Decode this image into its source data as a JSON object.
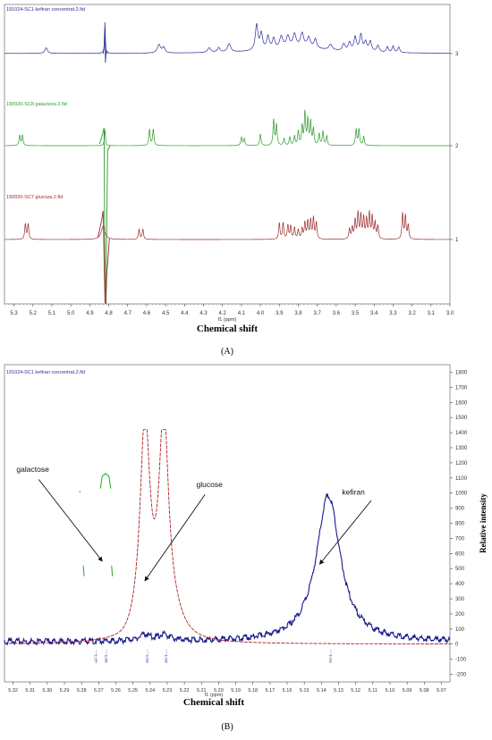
{
  "chart_data": [
    {
      "type": "line",
      "panel_label": "(A)",
      "xlabel": "Chemical shift",
      "x_unit_label": "f1 (ppm)",
      "xlim": [
        5.35,
        3.0
      ],
      "x_reversed": true,
      "x_ticks": [
        "5.3",
        "5.2",
        "5.1",
        "5.0",
        "4.9",
        "4.8",
        "4.7",
        "4.6",
        "4.5",
        "4.4",
        "4.3",
        "4.2",
        "4.1",
        "4.0",
        "3.9",
        "3.8",
        "3.7",
        "3.6",
        "3.5",
        "3.4",
        "3.3",
        "3.2",
        "3.1",
        "3.0"
      ],
      "offset_ticks": [
        "3",
        "2",
        "1"
      ],
      "colors": {
        "kefiran": "#2c2c99",
        "galactose": "#2a9a2a",
        "glucose": "#992a2a"
      },
      "series": [
        {
          "name": "191024-SC1 kefiran concentrat.2.fid",
          "key": "kefiran",
          "offset": 3,
          "peaks": [
            [
              5.13,
              0.12,
              0.008
            ],
            [
              4.82,
              0.55,
              0.003
            ],
            [
              4.535,
              0.18,
              0.01
            ],
            [
              4.51,
              0.12,
              0.008
            ],
            [
              4.27,
              0.1,
              0.01
            ],
            [
              4.22,
              0.1,
              0.008
            ],
            [
              4.165,
              0.18,
              0.01
            ],
            [
              4.02,
              0.55,
              0.008
            ],
            [
              3.995,
              0.35,
              0.008
            ],
            [
              3.96,
              0.28,
              0.008
            ],
            [
              3.93,
              0.22,
              0.008
            ],
            [
              3.89,
              0.25,
              0.01
            ],
            [
              3.855,
              0.24,
              0.01
            ],
            [
              3.82,
              0.28,
              0.01
            ],
            [
              3.78,
              0.3,
              0.01
            ],
            [
              3.745,
              0.22,
              0.01
            ],
            [
              3.71,
              0.2,
              0.008
            ],
            [
              3.63,
              0.12,
              0.01
            ],
            [
              3.56,
              0.15,
              0.008
            ],
            [
              3.53,
              0.18,
              0.008
            ],
            [
              3.5,
              0.3,
              0.008
            ],
            [
              3.47,
              0.35,
              0.008
            ],
            [
              3.445,
              0.2,
              0.008
            ],
            [
              3.42,
              0.22,
              0.008
            ],
            [
              3.38,
              0.14,
              0.008
            ],
            [
              3.33,
              0.12,
              0.006
            ],
            [
              3.3,
              0.14,
              0.006
            ],
            [
              3.27,
              0.12,
              0.006
            ]
          ]
        },
        {
          "name": "190920-SC8 galactoza.2.fid",
          "key": "galactose",
          "offset": 2,
          "peaks": [
            [
              5.27,
              0.22,
              0.004
            ],
            [
              5.255,
              0.22,
              0.004
            ],
            [
              4.82,
              0.35,
              0.003
            ],
            [
              4.585,
              0.35,
              0.004
            ],
            [
              4.565,
              0.35,
              0.004
            ],
            [
              4.1,
              0.18,
              0.004
            ],
            [
              4.085,
              0.15,
              0.004
            ],
            [
              4.0,
              0.25,
              0.004
            ],
            [
              3.93,
              0.55,
              0.004
            ],
            [
              3.915,
              0.45,
              0.004
            ],
            [
              3.875,
              0.15,
              0.004
            ],
            [
              3.845,
              0.18,
              0.004
            ],
            [
              3.82,
              0.2,
              0.004
            ],
            [
              3.8,
              0.3,
              0.004
            ],
            [
              3.78,
              0.4,
              0.004
            ],
            [
              3.765,
              0.7,
              0.004
            ],
            [
              3.75,
              0.55,
              0.004
            ],
            [
              3.735,
              0.5,
              0.004
            ],
            [
              3.72,
              0.35,
              0.004
            ],
            [
              3.69,
              0.25,
              0.004
            ],
            [
              3.67,
              0.3,
              0.004
            ],
            [
              3.65,
              0.2,
              0.004
            ],
            [
              3.495,
              0.35,
              0.004
            ],
            [
              3.48,
              0.35,
              0.004
            ],
            [
              3.455,
              0.2,
              0.004
            ]
          ]
        },
        {
          "name": "190920-SC7 glucoza.2.fid",
          "key": "glucose",
          "offset": 1,
          "peaks": [
            [
              5.24,
              0.33,
              0.004
            ],
            [
              5.225,
              0.33,
              0.004
            ],
            [
              4.83,
              0.28,
              0.012
            ],
            [
              4.64,
              0.22,
              0.004
            ],
            [
              4.62,
              0.22,
              0.004
            ],
            [
              3.9,
              0.35,
              0.004
            ],
            [
              3.88,
              0.35,
              0.004
            ],
            [
              3.855,
              0.3,
              0.004
            ],
            [
              3.84,
              0.28,
              0.004
            ],
            [
              3.82,
              0.25,
              0.004
            ],
            [
              3.8,
              0.2,
              0.004
            ],
            [
              3.78,
              0.22,
              0.004
            ],
            [
              3.765,
              0.35,
              0.004
            ],
            [
              3.75,
              0.38,
              0.004
            ],
            [
              3.735,
              0.4,
              0.004
            ],
            [
              3.72,
              0.45,
              0.004
            ],
            [
              3.705,
              0.35,
              0.004
            ],
            [
              3.53,
              0.22,
              0.004
            ],
            [
              3.515,
              0.25,
              0.004
            ],
            [
              3.5,
              0.4,
              0.004
            ],
            [
              3.485,
              0.55,
              0.004
            ],
            [
              3.47,
              0.5,
              0.004
            ],
            [
              3.455,
              0.45,
              0.004
            ],
            [
              3.44,
              0.42,
              0.004
            ],
            [
              3.425,
              0.55,
              0.004
            ],
            [
              3.41,
              0.48,
              0.004
            ],
            [
              3.395,
              0.35,
              0.004
            ],
            [
              3.38,
              0.28,
              0.004
            ],
            [
              3.25,
              0.55,
              0.004
            ],
            [
              3.235,
              0.5,
              0.004
            ],
            [
              3.22,
              0.3,
              0.004
            ]
          ]
        }
      ]
    },
    {
      "type": "line",
      "panel_label": "(B)",
      "xlabel": "Chemical shift",
      "x_unit_label": "f1 (ppm)",
      "ylabel": "Relative intensity",
      "xlim": [
        5.325,
        5.065
      ],
      "x_reversed": true,
      "ylim": [
        -250,
        1850
      ],
      "x_ticks": [
        "5.32",
        "5.31",
        "5.30",
        "5.29",
        "5.28",
        "5.27",
        "5.26",
        "5.25",
        "5.24",
        "5.23",
        "5.22",
        "5.21",
        "5.20",
        "5.19",
        "5.18",
        "5.17",
        "5.16",
        "5.15",
        "5.14",
        "5.13",
        "5.12",
        "5.11",
        "5.10",
        "5.09",
        "5.08",
        "5.07"
      ],
      "y_ticks": [
        "-200",
        "-100",
        "0",
        "100",
        "200",
        "300",
        "400",
        "500",
        "600",
        "700",
        "800",
        "900",
        "1000",
        "1100",
        "1200",
        "1300",
        "1400",
        "1500",
        "1600",
        "1700",
        "1800"
      ],
      "integral_labels": [
        "1.27",
        "1.26",
        "1.24",
        "1.23",
        "1.14"
      ],
      "trace_label": "191024-SC1 kefiran concentrat.2.fid",
      "annotations": [
        "galactose",
        "glucose",
        "kefiran"
      ],
      "series": [
        {
          "name": "kefiran",
          "color": "#1a1a8a",
          "peaks": [
            [
              5.136,
              970,
              0.0085
            ]
          ],
          "baseline": 25
        },
        {
          "name": "glucose",
          "color": "#b02020",
          "peaks": [
            [
              5.243,
              1420,
              0.0035
            ],
            [
              5.232,
              1420,
              0.0035
            ]
          ],
          "baseline": 0
        },
        {
          "name": "galactose",
          "color": "#22aa22",
          "segments": [
            [
              [
                5.269,
                1030
              ],
              [
                5.268,
                1110
              ],
              [
                5.266,
                1130
              ],
              [
                5.264,
                1110
              ],
              [
                5.263,
                1030
              ]
            ],
            [
              [
                5.279,
                520
              ],
              [
                5.2785,
                450
              ]
            ],
            [
              [
                5.2625,
                520
              ],
              [
                5.262,
                450
              ]
            ],
            [
              [
                5.281,
                1010
              ]
            ]
          ]
        }
      ]
    }
  ]
}
